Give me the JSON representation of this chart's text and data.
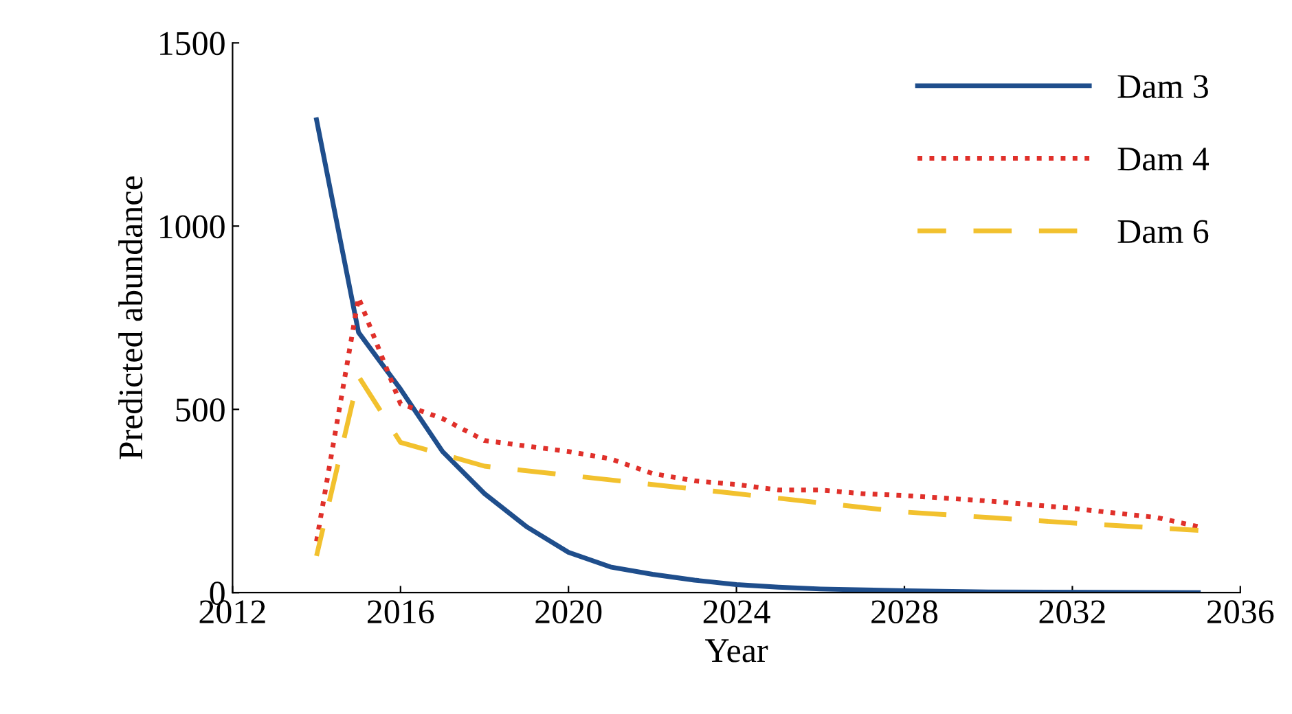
{
  "chart_data": {
    "type": "line",
    "xlabel": "Year",
    "ylabel": "Predicted abundance",
    "xlim": [
      2012,
      2036
    ],
    "xticks": [
      2012,
      2016,
      2020,
      2024,
      2028,
      2032,
      2036
    ],
    "ylim": [
      0,
      1500
    ],
    "yticks": [
      0,
      500,
      1000,
      1500
    ],
    "grid": false,
    "legend": "top right",
    "series": [
      {
        "name": "Dam 3",
        "color": "#1f4e8c",
        "line_style": "solid",
        "x": [
          2014,
          2015,
          2016,
          2017,
          2018,
          2019,
          2020,
          2021,
          2022,
          2023,
          2024,
          2025,
          2026,
          2028,
          2030,
          2035
        ],
        "values": [
          1290,
          710,
          555,
          385,
          270,
          180,
          110,
          70,
          50,
          34,
          22,
          15,
          10,
          5,
          2,
          0
        ]
      },
      {
        "name": "Dam 4",
        "color": "#e0302a",
        "line_style": "dotted",
        "x": [
          2014,
          2015,
          2016,
          2017,
          2018,
          2019,
          2020,
          2021,
          2022,
          2023,
          2024,
          2025,
          2026,
          2027,
          2028,
          2030,
          2032,
          2034,
          2035
        ],
        "values": [
          140,
          805,
          515,
          475,
          415,
          400,
          385,
          365,
          325,
          305,
          295,
          280,
          280,
          270,
          265,
          250,
          230,
          205,
          180
        ]
      },
      {
        "name": "Dam 6",
        "color": "#f2c12e",
        "line_style": "dashed",
        "x": [
          2014,
          2015,
          2016,
          2018,
          2020,
          2022,
          2024,
          2026,
          2028,
          2030,
          2032,
          2035
        ],
        "values": [
          100,
          590,
          410,
          345,
          320,
          295,
          270,
          245,
          220,
          205,
          190,
          170
        ]
      }
    ]
  }
}
